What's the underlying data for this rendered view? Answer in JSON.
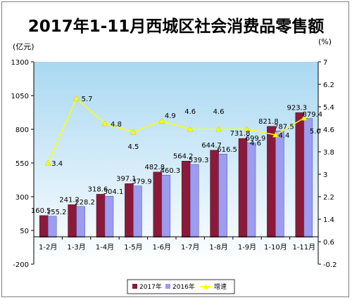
{
  "chart_data": {
    "type": "bar",
    "title": "2017年1-11月西城区社会消费品零售额",
    "ylabel_left": "(亿元)",
    "ylabel_right": "(%)",
    "categories": [
      "1-2月",
      "1-3月",
      "1-4月",
      "1-5月",
      "1-6月",
      "1-7月",
      "1-8月",
      "1-9月",
      "1-10月",
      "1-11月"
    ],
    "series": [
      {
        "name": "2017年",
        "kind": "bar",
        "axis": "left",
        "color": "#8b1a3a",
        "values": [
          160.5,
          241.2,
          318.6,
          397.1,
          482.8,
          564.2,
          644.7,
          731.8,
          821.8,
          923.3
        ],
        "labels": [
          "160.5",
          "241.2",
          "318.6",
          "397.1",
          "482.8",
          "564.2",
          "644.7",
          "731.8",
          "821.8",
          "923.3"
        ]
      },
      {
        "name": "2016年",
        "kind": "bar",
        "axis": "left",
        "color": "#9c9cf0",
        "values": [
          155.2,
          228.2,
          304.1,
          379.9,
          460.3,
          539.3,
          616.5,
          699.9,
          787.5,
          879.4
        ],
        "labels": [
          "155.2",
          "228.2",
          "304.1",
          "379.9",
          "460.3",
          "539.3",
          "616.5",
          "699.9",
          "787.5",
          "879.4"
        ]
      },
      {
        "name": "增速",
        "kind": "line",
        "axis": "right",
        "color": "#ffff00",
        "values": [
          3.4,
          5.7,
          4.8,
          4.5,
          4.9,
          4.6,
          4.6,
          4.6,
          4.4,
          5.0
        ],
        "labels": [
          "3.4",
          "5.7",
          "4.8",
          "4.5",
          "4.9",
          "4.6",
          "4.6",
          "4.6",
          "4.4",
          "5.0"
        ]
      }
    ],
    "y_left": {
      "min": -200,
      "max": 1300,
      "ticks": [
        "-200",
        "50",
        "300",
        "550",
        "800",
        "1050",
        "1300"
      ]
    },
    "y_right": {
      "min": -0.2,
      "max": 7,
      "ticks": [
        "-0.2",
        "0.6",
        "1.4",
        "2.2",
        "3",
        "3.8",
        "4.6",
        "5.4",
        "6.2",
        "7"
      ]
    },
    "legend_position": "bottom-center",
    "plot_background": "gradient sky blue to white",
    "grid": false
  }
}
